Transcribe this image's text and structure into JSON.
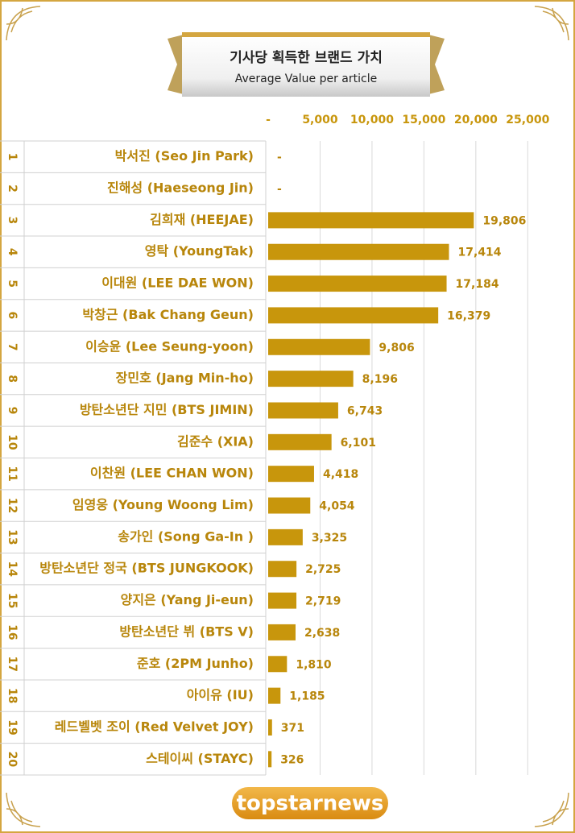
{
  "chart_data": {
    "type": "bar",
    "title": "기사당 획득한 브랜드 가치",
    "subtitle": "Average Value per article",
    "ranks": [
      "1",
      "2",
      "3",
      "4",
      "5",
      "6",
      "7",
      "8",
      "9",
      "10",
      "11",
      "12",
      "13",
      "14",
      "15",
      "16",
      "17",
      "18",
      "19",
      "20"
    ],
    "categories": [
      "박서진 (Seo Jin Park)",
      "진해성 (Haeseong Jin)",
      "김희재 (HEEJAE)",
      "영탁 (YoungTak)",
      "이대원 (LEE DAE WON)",
      "박창근 (Bak Chang Geun)",
      "이승윤 (Lee Seung-yoon)",
      "장민호 (Jang Min-ho)",
      "방탄소년단 지민 (BTS JIMIN)",
      "김준수 (XIA)",
      "이찬원 (LEE CHAN WON)",
      "임영웅 (Young Woong Lim)",
      "송가인 (Song Ga-In )",
      "방탄소년단 정국 (BTS JUNGKOOK)",
      "양지은 (Yang Ji-eun)",
      "방탄소년단 뷔 (BTS V)",
      "준호 (2PM Junho)",
      "아이유 (IU)",
      "레드벨벳 조이 (Red Velvet JOY)",
      "스테이씨 (STAYC)"
    ],
    "values": [
      0,
      0,
      19806,
      17414,
      17184,
      16379,
      9806,
      8196,
      6743,
      6101,
      4418,
      4054,
      3325,
      2725,
      2719,
      2638,
      1810,
      1185,
      371,
      326
    ],
    "value_labels": [
      "-",
      "-",
      "19,806",
      "17,414",
      "17,184",
      "16,379",
      "9,806",
      "8,196",
      "6,743",
      "6,101",
      "4,418",
      "4,054",
      "3,325",
      "2,725",
      "2,719",
      "2,638",
      "1,810",
      "1,185",
      "371",
      "326"
    ],
    "color": "#c8960c",
    "xlim": [
      0,
      28000
    ],
    "xticks": [
      {
        "value": 0,
        "label": "-"
      },
      {
        "value": 5000,
        "label": "5,000"
      },
      {
        "value": 10000,
        "label": "10,000"
      },
      {
        "value": 15000,
        "label": "15,000"
      },
      {
        "value": 20000,
        "label": "20,000"
      },
      {
        "value": 25000,
        "label": "25,000"
      }
    ],
    "grid": true
  },
  "logo": "topstarnews"
}
